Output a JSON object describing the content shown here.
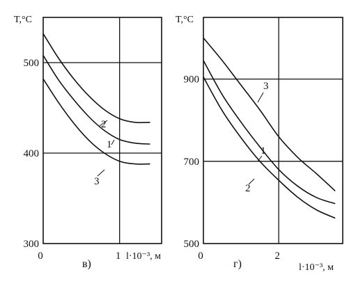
{
  "chart_data": [
    {
      "type": "line",
      "panel_label": "в)",
      "ylabel": "T,°C",
      "xlabel": "l·10⁻³, м",
      "xlim": [
        0,
        1.55
      ],
      "ylim": [
        300,
        550
      ],
      "x_ticks": [
        {
          "value": 0,
          "label": "0"
        },
        {
          "value": 1,
          "label": "1"
        }
      ],
      "y_ticks": [
        {
          "value": 300,
          "label": "300"
        },
        {
          "value": 400,
          "label": "400"
        },
        {
          "value": 500,
          "label": "500"
        }
      ],
      "grid": {
        "x": [
          1
        ],
        "y": [
          400,
          500
        ]
      },
      "series": [
        {
          "name": "2",
          "x": [
            0,
            0.2,
            0.4,
            0.6,
            0.8,
            1.0,
            1.2,
            1.4
          ],
          "y": [
            532,
            505,
            482,
            463,
            448,
            438,
            434,
            434
          ]
        },
        {
          "name": "1",
          "x": [
            0,
            0.2,
            0.4,
            0.6,
            0.8,
            1.0,
            1.2,
            1.4
          ],
          "y": [
            508,
            481,
            459,
            440,
            425,
            415,
            411,
            410
          ]
        },
        {
          "name": "3",
          "x": [
            0,
            0.2,
            0.4,
            0.6,
            0.8,
            1.0,
            1.2,
            1.4
          ],
          "y": [
            482,
            456,
            433,
            414,
            400,
            391,
            388,
            388
          ]
        }
      ]
    },
    {
      "type": "line",
      "panel_label": "г)",
      "ylabel": "T,°C",
      "xlabel": "l·10⁻³, м",
      "xlim": [
        0,
        3.7
      ],
      "ylim": [
        500,
        1050
      ],
      "x_ticks": [
        {
          "value": 0,
          "label": "0"
        },
        {
          "value": 2,
          "label": "2"
        }
      ],
      "y_ticks": [
        {
          "value": 500,
          "label": "500"
        },
        {
          "value": 700,
          "label": "700"
        },
        {
          "value": 900,
          "label": "900"
        }
      ],
      "grid": {
        "x": [
          2
        ],
        "y": [
          700,
          900
        ]
      },
      "series": [
        {
          "name": "3",
          "x": [
            0,
            0.5,
            1,
            1.5,
            2,
            2.5,
            3,
            3.5
          ],
          "y": [
            1000,
            945,
            885,
            825,
            760,
            710,
            670,
            628
          ]
        },
        {
          "name": "1",
          "x": [
            0,
            0.5,
            1,
            1.5,
            2,
            2.5,
            3,
            3.5
          ],
          "y": [
            945,
            862,
            795,
            735,
            680,
            640,
            612,
            597
          ]
        },
        {
          "name": "2",
          "x": [
            0,
            0.5,
            1,
            1.5,
            2,
            2.5,
            3,
            3.5
          ],
          "y": [
            905,
            823,
            757,
            700,
            654,
            613,
            582,
            562
          ]
        }
      ]
    }
  ]
}
